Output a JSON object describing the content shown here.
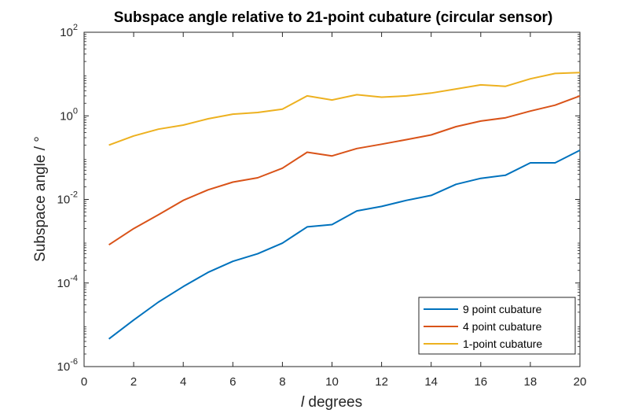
{
  "chart_data": {
    "type": "line",
    "title": "Subspace angle relative to 21-point cubature (circular sensor)",
    "xlabel_var": "l",
    "xlabel_unit": " degrees",
    "ylabel": "Subspace angle / °",
    "xlim": [
      0,
      20
    ],
    "ylim": [
      1e-06,
      100
    ],
    "yscale": "log",
    "xticks": [
      0,
      2,
      4,
      6,
      8,
      10,
      12,
      14,
      16,
      18,
      20
    ],
    "yticks": [
      {
        "base": "10",
        "exp": "-6",
        "value": 1e-06
      },
      {
        "base": "10",
        "exp": "-4",
        "value": 0.0001
      },
      {
        "base": "10",
        "exp": "-2",
        "value": 0.01
      },
      {
        "base": "10",
        "exp": "0",
        "value": 1
      },
      {
        "base": "10",
        "exp": "2",
        "value": 100
      }
    ],
    "grid": false,
    "legend_position": "bottom-right",
    "x": [
      1,
      2,
      3,
      4,
      5,
      6,
      7,
      8,
      9,
      10,
      11,
      12,
      13,
      14,
      15,
      16,
      17,
      18,
      19,
      20
    ],
    "series": [
      {
        "name": "9 point cubature",
        "color": "#0072BD",
        "values": [
          4.6e-06,
          1.3e-05,
          3.5e-05,
          8.2e-05,
          0.00018,
          0.00033,
          0.0005,
          0.0009,
          0.0022,
          0.0025,
          0.0053,
          0.0068,
          0.0095,
          0.0125,
          0.023,
          0.032,
          0.038,
          0.075,
          0.075,
          0.15
        ]
      },
      {
        "name": "4 point cubature",
        "color": "#D95319",
        "values": [
          0.00082,
          0.002,
          0.0043,
          0.0095,
          0.017,
          0.026,
          0.033,
          0.056,
          0.135,
          0.11,
          0.165,
          0.21,
          0.27,
          0.35,
          0.55,
          0.75,
          0.9,
          1.3,
          1.8,
          3.0
        ]
      },
      {
        "name": "1-point cubature",
        "color": "#EDB120",
        "values": [
          0.2,
          0.33,
          0.48,
          0.6,
          0.85,
          1.1,
          1.2,
          1.45,
          3.0,
          2.4,
          3.2,
          2.8,
          3.0,
          3.5,
          4.4,
          5.5,
          5.1,
          7.7,
          10.3,
          10.8
        ]
      }
    ]
  }
}
